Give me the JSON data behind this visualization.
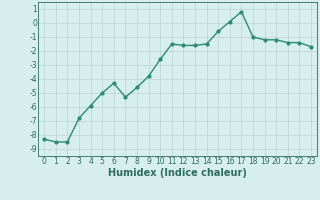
{
  "x": [
    0,
    1,
    2,
    3,
    4,
    5,
    6,
    7,
    8,
    9,
    10,
    11,
    12,
    13,
    14,
    15,
    16,
    17,
    18,
    19,
    20,
    21,
    22,
    23
  ],
  "y": [
    -8.3,
    -8.5,
    -8.5,
    -6.8,
    -5.9,
    -5.0,
    -4.3,
    -5.3,
    -4.6,
    -3.8,
    -2.6,
    -1.5,
    -1.6,
    -1.6,
    -1.5,
    -0.6,
    0.1,
    0.8,
    -1.0,
    -1.2,
    -1.2,
    -1.4,
    -1.4,
    -1.7
  ],
  "line_color": "#2e8b71",
  "marker": "o",
  "marker_size": 2,
  "line_width": 1.0,
  "bg_color": "#d6eeee",
  "grid_color": "#c0d8d8",
  "xlabel": "Humidex (Indice chaleur)",
  "ylabel": "",
  "ylim": [
    -9.5,
    1.5
  ],
  "xlim": [
    -0.5,
    23.5
  ],
  "yticks": [
    1,
    0,
    -1,
    -2,
    -3,
    -4,
    -5,
    -6,
    -7,
    -8,
    -9
  ],
  "xticks": [
    0,
    1,
    2,
    3,
    4,
    5,
    6,
    7,
    8,
    9,
    10,
    11,
    12,
    13,
    14,
    15,
    16,
    17,
    18,
    19,
    20,
    21,
    22,
    23
  ],
  "tick_color": "#2e6b61",
  "label_fontsize": 5.5,
  "xlabel_fontsize": 7
}
